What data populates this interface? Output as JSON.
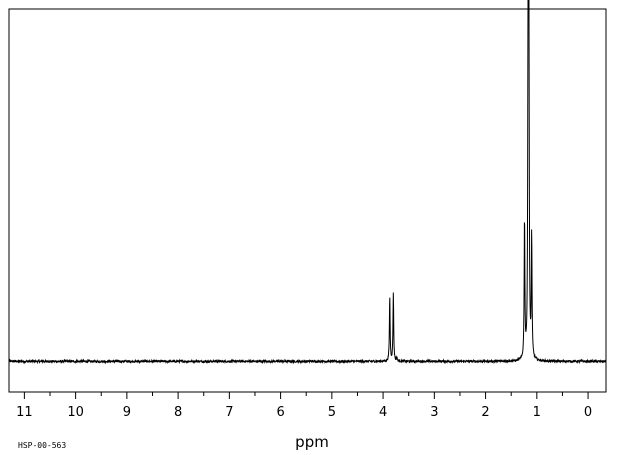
{
  "chart_data": {
    "type": "line",
    "title": "",
    "xlabel": "ppm",
    "ylabel": "",
    "x_reversed": true,
    "xlim": [
      11.3,
      -0.35
    ],
    "ylim": [
      0,
      1
    ],
    "baseline": 0.08,
    "major_ticks": [
      11,
      10,
      9,
      8,
      7,
      6,
      5,
      4,
      3,
      2,
      1,
      0
    ],
    "minor_step": 0.5,
    "grid": false,
    "legend": "none",
    "peaks": [
      {
        "ppm": 3.94,
        "height": 0.08
      },
      {
        "ppm": 3.87,
        "height": 0.25
      },
      {
        "ppm": 3.8,
        "height": 0.26
      },
      {
        "ppm": 3.73,
        "height": 0.09
      },
      {
        "ppm": 1.24,
        "height": 0.45
      },
      {
        "ppm": 1.17,
        "height": 0.97
      },
      {
        "ppm": 1.155,
        "height": 0.92
      },
      {
        "ppm": 1.1,
        "height": 0.4
      }
    ]
  },
  "footer": {
    "code": "HSP-00-563"
  },
  "colors": {
    "line": "#000000",
    "background": "#ffffff"
  }
}
